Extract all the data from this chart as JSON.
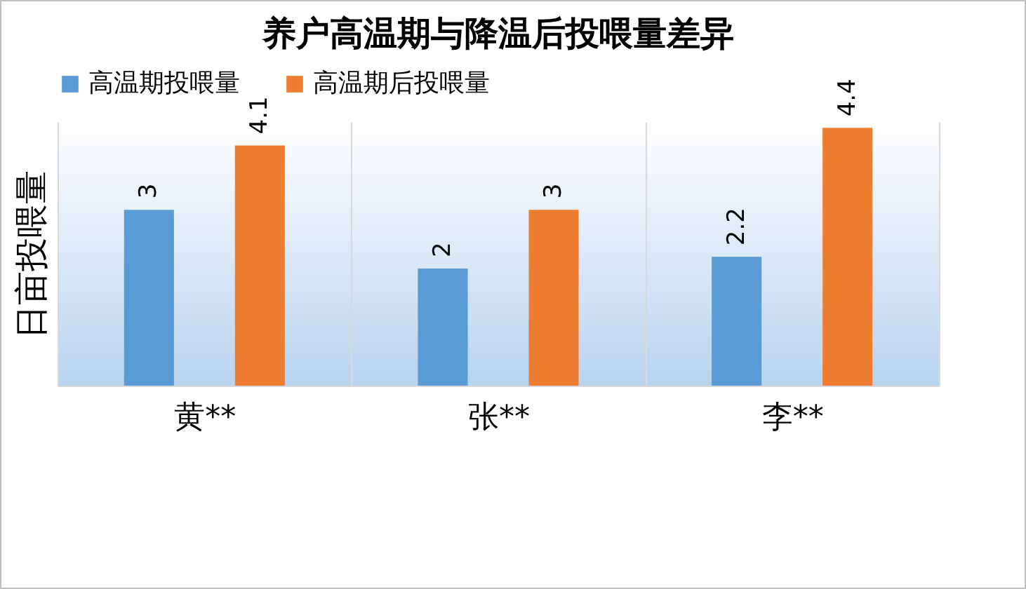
{
  "chart_data": {
    "type": "bar",
    "title": "养户高温期与降温后投喂量差异",
    "ylabel": "日亩投喂量",
    "categories": [
      "黄**",
      "张**",
      "李**"
    ],
    "series": [
      {
        "name": "高温期投喂量",
        "color": "#5b9bd5",
        "values": [
          3,
          2,
          2.2
        ]
      },
      {
        "name": "高温期后投喂量",
        "color": "#ed7d31",
        "values": [
          4.1,
          3,
          4.4
        ]
      }
    ],
    "data_labels": true,
    "legend": "top",
    "grid": "x",
    "tick_labels": "x"
  }
}
